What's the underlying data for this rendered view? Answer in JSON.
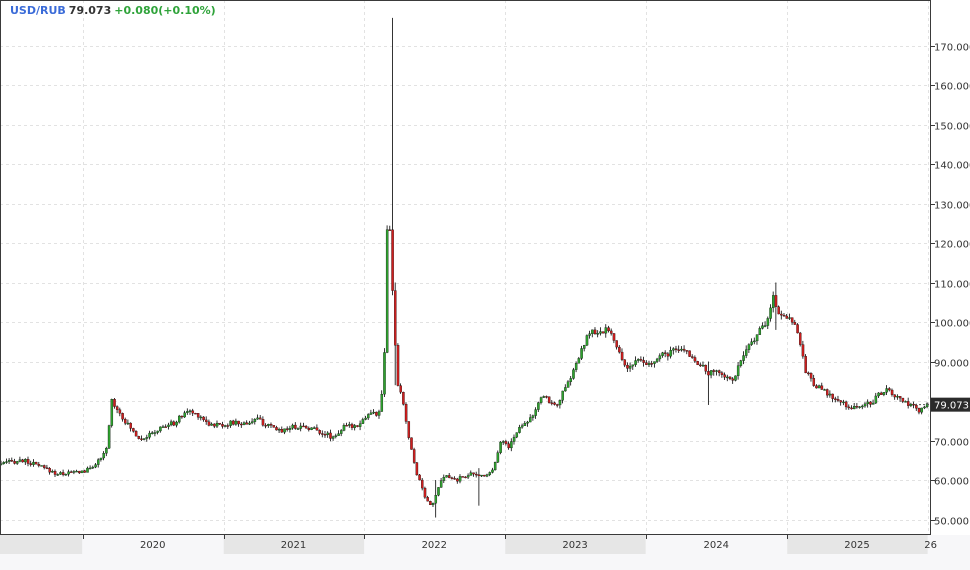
{
  "header": {
    "symbol": "USD/RUB",
    "last_price": "79.073",
    "change_text": "+0.080(+0.10%)"
  },
  "colors": {
    "up": "#2ea02e",
    "down": "#cc1f1f",
    "grid": "#e2e2e2",
    "axis": "#3a3a3a",
    "price_label_bg": "#2b2b2b",
    "price_label_fg": "#ffffff",
    "year_band": "#e6e6e6"
  },
  "chart_data": {
    "type": "candlestick",
    "title": "",
    "xlabel": "",
    "ylabel": "",
    "ylim": [
      47,
      178
    ],
    "y_ticks": [
      "50.000",
      "60.000",
      "70.000",
      "80.000",
      "90.000",
      "100.000",
      "110.000",
      "120.000",
      "130.000",
      "140.000",
      "150.000",
      "160.000",
      "170.000"
    ],
    "x_labels": [
      "2020",
      "2021",
      "2022",
      "2023",
      "2024",
      "2025",
      "26"
    ],
    "grid": true,
    "last_price_label": "79.073",
    "price_path": [
      [
        "2019-06-01",
        64.0
      ],
      [
        "2019-08-01",
        65.0
      ],
      [
        "2019-09-15",
        63.5
      ],
      [
        "2019-11-01",
        61.5
      ],
      [
        "2019-12-15",
        62.0
      ],
      [
        "2020-01-15",
        62.3
      ],
      [
        "2020-02-25",
        65.5
      ],
      [
        "2020-03-10",
        68.5
      ],
      [
        "2020-03-19",
        80.5
      ],
      [
        "2020-04-01",
        78.5
      ],
      [
        "2020-05-01",
        74.0
      ],
      [
        "2020-06-01",
        70.5
      ],
      [
        "2020-07-01",
        71.5
      ],
      [
        "2020-08-01",
        73.5
      ],
      [
        "2020-09-01",
        74.5
      ],
      [
        "2020-10-01",
        77.5
      ],
      [
        "2020-11-01",
        76.5
      ],
      [
        "2020-12-01",
        74.0
      ],
      [
        "2021-01-01",
        74.0
      ],
      [
        "2021-02-01",
        74.5
      ],
      [
        "2021-03-01",
        74.2
      ],
      [
        "2021-04-01",
        75.5
      ],
      [
        "2021-05-01",
        73.5
      ],
      [
        "2021-06-01",
        72.5
      ],
      [
        "2021-07-01",
        73.5
      ],
      [
        "2021-08-01",
        73.5
      ],
      [
        "2021-09-01",
        72.8
      ],
      [
        "2021-10-15",
        70.8
      ],
      [
        "2021-11-15",
        73.5
      ],
      [
        "2021-12-15",
        73.8
      ],
      [
        "2022-01-20",
        77.0
      ],
      [
        "2022-02-10",
        76.5
      ],
      [
        "2022-02-24",
        84.0
      ],
      [
        "2022-03-01",
        105.0
      ],
      [
        "2022-03-07",
        131.0
      ],
      [
        "2022-03-14",
        120.0
      ],
      [
        "2022-03-21",
        103.0
      ],
      [
        "2022-04-01",
        84.0
      ],
      [
        "2022-04-15",
        80.0
      ],
      [
        "2022-05-01",
        70.0
      ],
      [
        "2022-05-20",
        62.0
      ],
      [
        "2022-06-15",
        55.0
      ],
      [
        "2022-07-01",
        53.5
      ],
      [
        "2022-07-15",
        58.0
      ],
      [
        "2022-08-01",
        61.0
      ],
      [
        "2022-09-01",
        60.0
      ],
      [
        "2022-10-01",
        61.5
      ],
      [
        "2022-11-01",
        61.0
      ],
      [
        "2022-12-01",
        62.0
      ],
      [
        "2022-12-25",
        70.0
      ],
      [
        "2023-01-15",
        68.5
      ],
      [
        "2023-02-15",
        74.0
      ],
      [
        "2023-03-15",
        76.0
      ],
      [
        "2023-04-15",
        81.5
      ],
      [
        "2023-05-15",
        78.5
      ],
      [
        "2023-06-15",
        84.0
      ],
      [
        "2023-07-15",
        91.0
      ],
      [
        "2023-08-14",
        98.0
      ],
      [
        "2023-09-01",
        96.5
      ],
      [
        "2023-10-01",
        98.5
      ],
      [
        "2023-10-20",
        93.5
      ],
      [
        "2023-11-15",
        88.5
      ],
      [
        "2023-12-15",
        90.0
      ],
      [
        "2024-01-15",
        89.0
      ],
      [
        "2024-02-15",
        91.5
      ],
      [
        "2024-03-15",
        92.5
      ],
      [
        "2024-04-15",
        93.0
      ],
      [
        "2024-05-15",
        90.0
      ],
      [
        "2024-06-15",
        87.0
      ],
      [
        "2024-07-15",
        87.5
      ],
      [
        "2024-08-15",
        85.0
      ],
      [
        "2024-09-15",
        91.5
      ],
      [
        "2024-10-15",
        96.5
      ],
      [
        "2024-11-15",
        100.0
      ],
      [
        "2024-11-28",
        107.0
      ],
      [
        "2024-12-15",
        102.0
      ],
      [
        "2025-01-15",
        101.0
      ],
      [
        "2025-02-01",
        98.0
      ],
      [
        "2025-02-20",
        88.0
      ],
      [
        "2025-03-15",
        84.5
      ],
      [
        "2025-04-15",
        82.0
      ],
      [
        "2025-05-15",
        80.0
      ],
      [
        "2025-06-15",
        78.5
      ],
      [
        "2025-07-15",
        78.5
      ],
      [
        "2025-08-15",
        80.0
      ],
      [
        "2025-09-15",
        83.0
      ],
      [
        "2025-10-15",
        81.0
      ],
      [
        "2025-11-15",
        79.0
      ],
      [
        "2025-12-15",
        77.5
      ],
      [
        "2026-01-01",
        79.073
      ]
    ],
    "spikes": [
      {
        "date": "2022-03-10",
        "high": 177.0,
        "low": 115.0
      },
      {
        "date": "2022-03-16",
        "high": 135.0,
        "low": 90.0
      },
      {
        "date": "2022-03-22",
        "high": 110.0,
        "low": 84.0
      },
      {
        "date": "2022-07-05",
        "high": 60.0,
        "low": 50.5
      },
      {
        "date": "2022-10-20",
        "high": 63.0,
        "low": 53.5
      },
      {
        "date": "2024-06-10",
        "high": 90.0,
        "low": 79.0
      },
      {
        "date": "2024-11-27",
        "high": 110.0,
        "low": 98.0
      }
    ]
  }
}
